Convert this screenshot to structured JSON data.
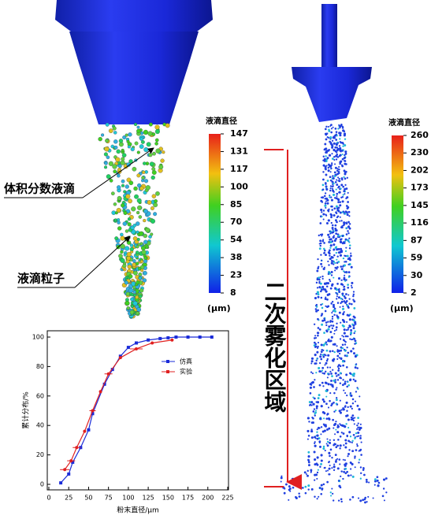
{
  "chart_data": {
    "type": "line",
    "xlabel": "粉末直径/μm",
    "ylabel": "累计分布/%",
    "xlim": [
      0,
      225
    ],
    "xticks": [
      0,
      25,
      50,
      75,
      100,
      125,
      150,
      175,
      200,
      225
    ],
    "ylim": [
      0,
      100
    ],
    "yticks": [
      0,
      20,
      40,
      60,
      80,
      100
    ],
    "legend": "upper right",
    "series": [
      {
        "name": "仿真",
        "color": "#1a2bd8",
        "marker": "square",
        "x": [
          15,
          25,
          30,
          40,
          50,
          55,
          70,
          80,
          90,
          100,
          110,
          125,
          140,
          150,
          160,
          175,
          190,
          205
        ],
        "values": [
          1,
          7,
          15,
          25,
          37,
          48,
          68,
          78,
          87,
          93,
          96,
          98,
          99,
          99.5,
          100,
          100,
          100,
          100
        ]
      },
      {
        "name": "实验",
        "color": "#e02020",
        "marker": "circle",
        "x": [
          20,
          28,
          35,
          45,
          55,
          65,
          75,
          90,
          110,
          130,
          155
        ],
        "values": [
          10,
          16,
          25,
          36,
          50,
          63,
          75,
          86,
          92,
          96,
          98
        ],
        "xerr": [
          6,
          5,
          5,
          null,
          4,
          null,
          5,
          null,
          8,
          null,
          null
        ]
      }
    ]
  },
  "labels": {
    "volume_droplet": "体积分数液滴",
    "particles": "液滴粒子",
    "secondary_zone": "二次雾化区域"
  },
  "colorbars": [
    {
      "title": "液滴直径",
      "ticks": [
        147,
        131,
        117,
        100,
        85,
        70,
        54,
        38,
        23,
        8
      ],
      "unit": "(μm)"
    },
    {
      "title": "液滴直径",
      "ticks": [
        260,
        230,
        202,
        173,
        145,
        116,
        87,
        59,
        30,
        2
      ],
      "unit": "(μm)"
    }
  ]
}
